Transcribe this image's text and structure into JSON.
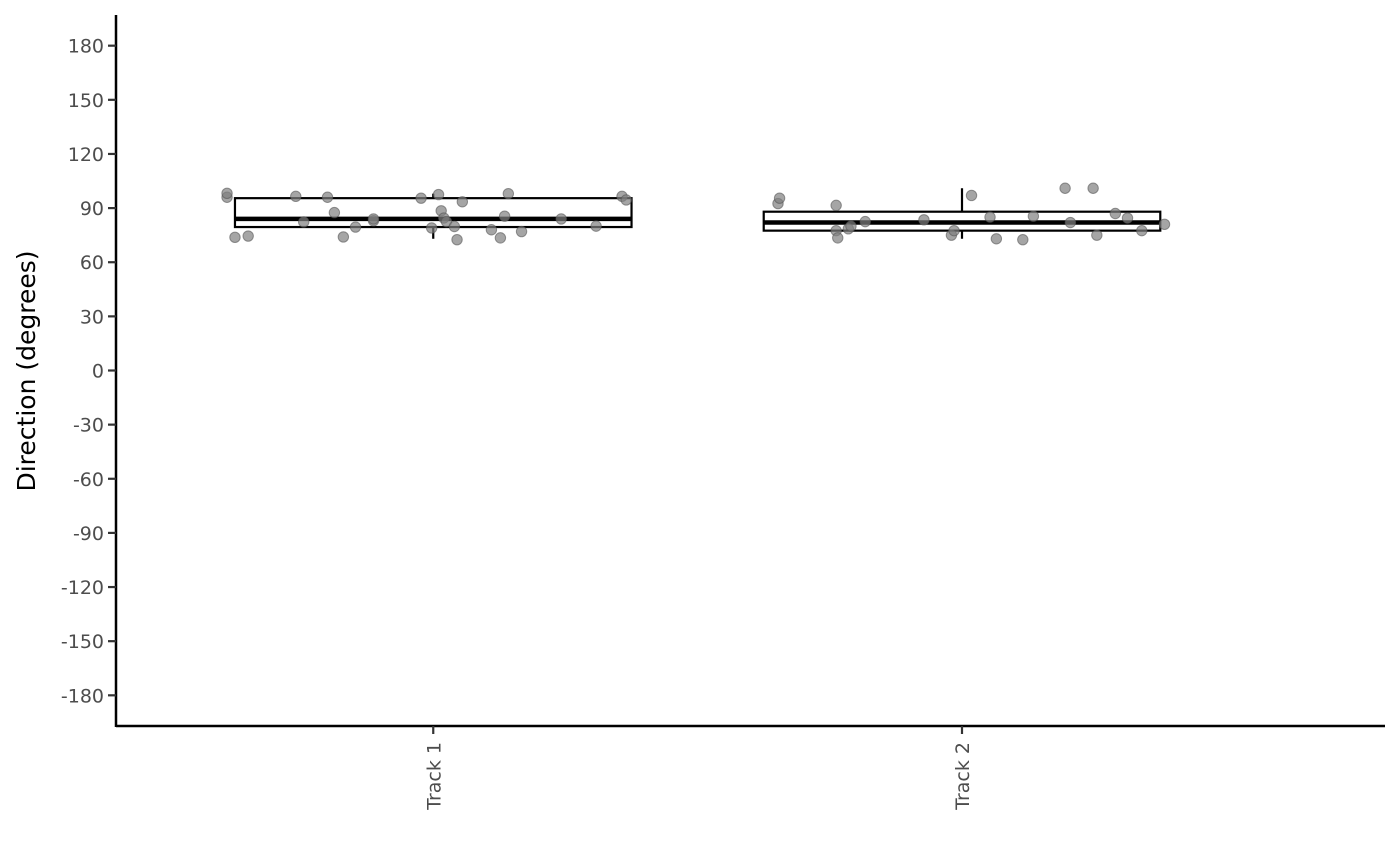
{
  "chart_data": {
    "type": "box",
    "title": "",
    "xlabel": "",
    "ylabel": "Direction (degrees)",
    "ylim": [
      -197,
      197
    ],
    "yticks": [
      180,
      150,
      120,
      90,
      60,
      30,
      0,
      -30,
      -60,
      -90,
      -120,
      -150,
      -180
    ],
    "ytick_labels": [
      "180",
      "150",
      "120",
      "90",
      "60",
      "30",
      "0",
      "-30",
      "-60",
      "-90",
      "-120",
      "-150",
      "-180"
    ],
    "categories": [
      "Track 1",
      "Track 2"
    ],
    "grid": false,
    "legend": "none",
    "point_color": "#7f7f7f",
    "boxes": [
      {
        "category": "Track 1",
        "q1": 79.5,
        "median": 84,
        "q3": 95.5,
        "whisker_low": 73,
        "whisker_high": 98,
        "points": [
          [
            -0.39,
            96
          ],
          [
            -0.39,
            98.2
          ],
          [
            -0.375,
            73.8
          ],
          [
            -0.35,
            74.5
          ],
          [
            -0.26,
            96.5
          ],
          [
            -0.245,
            82.3
          ],
          [
            -0.2,
            96
          ],
          [
            -0.187,
            87.5
          ],
          [
            -0.17,
            74
          ],
          [
            -0.147,
            79.5
          ],
          [
            -0.113,
            83
          ],
          [
            -0.113,
            84
          ],
          [
            -0.023,
            95.5
          ],
          [
            -0.003,
            79
          ],
          [
            0.01,
            97.5
          ],
          [
            0.015,
            88.5
          ],
          [
            0.02,
            84.5
          ],
          [
            0.025,
            82.5
          ],
          [
            0.04,
            79.8
          ],
          [
            0.045,
            72.5
          ],
          [
            0.055,
            93.5
          ],
          [
            0.11,
            78
          ],
          [
            0.127,
            73.5
          ],
          [
            0.135,
            85.5
          ],
          [
            0.142,
            98
          ],
          [
            0.167,
            77
          ],
          [
            0.242,
            84
          ],
          [
            0.308,
            80
          ],
          [
            0.357,
            96.5
          ],
          [
            0.365,
            94.5
          ]
        ]
      },
      {
        "category": "Track 2",
        "q1": 77.5,
        "median": 82,
        "q3": 88,
        "whisker_low": 73,
        "whisker_high": 101,
        "points": [
          [
            -0.348,
            92.5
          ],
          [
            -0.345,
            95.5
          ],
          [
            -0.238,
            91.5
          ],
          [
            -0.238,
            77.5
          ],
          [
            -0.235,
            73.5
          ],
          [
            -0.215,
            78.5
          ],
          [
            -0.21,
            80
          ],
          [
            -0.183,
            82.5
          ],
          [
            -0.072,
            83.5
          ],
          [
            -0.02,
            75
          ],
          [
            -0.015,
            77.5
          ],
          [
            0.018,
            97
          ],
          [
            0.053,
            85
          ],
          [
            0.065,
            73
          ],
          [
            0.135,
            85.5
          ],
          [
            0.115,
            72.5
          ],
          [
            0.195,
            101
          ],
          [
            0.205,
            82
          ],
          [
            0.248,
            101
          ],
          [
            0.255,
            75
          ],
          [
            0.29,
            87
          ],
          [
            0.313,
            84.5
          ],
          [
            0.34,
            77.5
          ],
          [
            0.383,
            81
          ]
        ]
      }
    ]
  }
}
